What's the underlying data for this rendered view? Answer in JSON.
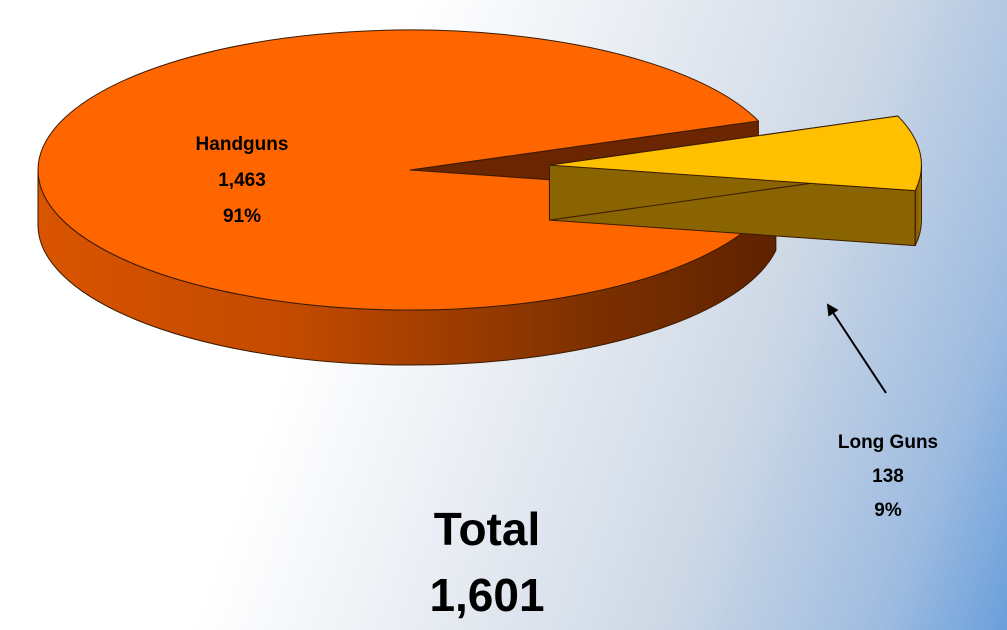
{
  "chart_data": {
    "type": "pie",
    "style": "3d-exploded",
    "slices": [
      {
        "name": "Handguns",
        "value": 1463,
        "value_label": "1,463",
        "percent_label": "91%",
        "color": "#ff6600"
      },
      {
        "name": "Long Guns",
        "value": 138,
        "value_label": "138",
        "percent_label": "9%",
        "color": "#ffc000"
      }
    ],
    "total": {
      "label": "Total",
      "value": 1601,
      "value_label": "1,601"
    },
    "annotations": [
      {
        "type": "arrow",
        "target": "Long Guns"
      }
    ]
  },
  "colors": {
    "handguns_top": "#ff6600",
    "handguns_side_dark": "#6b2500",
    "handguns_side_light": "#e65a00",
    "longguns_top": "#ffc000",
    "longguns_side": "#8a6400",
    "outline": "#3a1a00"
  }
}
